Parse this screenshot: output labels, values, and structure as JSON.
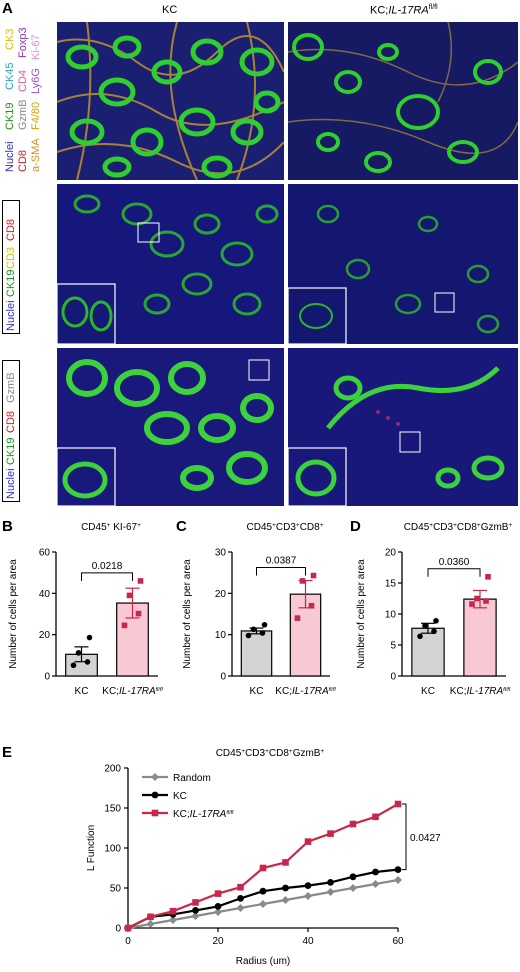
{
  "panel_labels": {
    "A": "A",
    "B": "B",
    "C": "C",
    "D": "D",
    "E": "E"
  },
  "panel_a": {
    "col_titles": [
      "KC",
      "KC;IL-17RA fl/fl"
    ],
    "row1_markers": [
      {
        "text": "Nuclei",
        "color": "#2d2dd0"
      },
      {
        "text": "CK19",
        "color": "#1a9a1a"
      },
      {
        "text": "CK45",
        "color": "#2aa6c9"
      },
      {
        "text": "CK3",
        "color": "#d6c100"
      },
      {
        "text": "CD8",
        "color": "#d01f1f"
      },
      {
        "text": "GzmB",
        "color": "#8a8a8a"
      },
      {
        "text": "CD4",
        "color": "#e05ab0"
      },
      {
        "text": "Foxp3",
        "color": "#8a35b5"
      },
      {
        "text": "a-SMA",
        "color": "#e08a1c"
      },
      {
        "text": "F4/80",
        "color": "#d6a300"
      },
      {
        "text": "Ly6G",
        "color": "#a04fd6"
      },
      {
        "text": "Ki-67",
        "color": "#e58ad6"
      }
    ],
    "row2_markers": [
      {
        "text": "Nuclei",
        "color": "#2d2dd0"
      },
      {
        "text": "CK19",
        "color": "#1a9a1a"
      },
      {
        "text": "CD3",
        "color": "#d6c100"
      },
      {
        "text": "CD8",
        "color": "#d01f1f"
      }
    ],
    "row3_markers": [
      {
        "text": "Nuclei",
        "color": "#2d2dd0"
      },
      {
        "text": "CK19",
        "color": "#1a9a1a"
      },
      {
        "text": "CD8",
        "color": "#d01f1f"
      },
      {
        "text": "GzmB",
        "color": "#8a8a8a"
      }
    ]
  },
  "chart_data": [
    {
      "panel": "B",
      "type": "bar",
      "title": "CD45+ KI-67+",
      "ylabel": "Number of cells per area",
      "categories": [
        "KC",
        "KC;IL-17RA fl/fl"
      ],
      "values": [
        10.5,
        35.3
      ],
      "errors": [
        3.6,
        7.2
      ],
      "points": [
        [
          5.2,
          6.8,
          11.2,
          18.6
        ],
        [
          24.5,
          30.2,
          39.0,
          46.0
        ]
      ],
      "colors": [
        "#d3d3d3",
        "#f8c8d4"
      ],
      "point_colors": [
        "#000000",
        "#c8274a"
      ],
      "ylim": [
        0,
        60
      ],
      "yticks": [
        0,
        20,
        40,
        60
      ],
      "pvalue": "0.0218"
    },
    {
      "panel": "C",
      "type": "bar",
      "title": "CD45+CD3+CD8+",
      "ylabel": "Number of cells per area",
      "categories": [
        "KC",
        "KC;IL-17RA fl/fl"
      ],
      "values": [
        10.9,
        19.8
      ],
      "errors": [
        0.7,
        3.3
      ],
      "points": [
        [
          9.8,
          10.4,
          11.3,
          12.4
        ],
        [
          14.0,
          17.0,
          23.0,
          24.3
        ]
      ],
      "colors": [
        "#d3d3d3",
        "#f8c8d4"
      ],
      "point_colors": [
        "#000000",
        "#c8274a"
      ],
      "ylim": [
        0,
        30
      ],
      "yticks": [
        0,
        10,
        20,
        30
      ],
      "pvalue": "0.0387"
    },
    {
      "panel": "D",
      "type": "bar",
      "title": "CD45+CD3+CD8+GzmB+",
      "ylabel": "Number of cells per area",
      "categories": [
        "KC",
        "KC;IL-17RA fl/fl"
      ],
      "values": [
        7.7,
        12.4
      ],
      "errors": [
        0.8,
        1.4
      ],
      "points": [
        [
          6.4,
          7.2,
          8.1,
          8.9
        ],
        [
          11.6,
          12.1,
          12.5,
          16.0
        ]
      ],
      "colors": [
        "#d3d3d3",
        "#f8c8d4"
      ],
      "point_colors": [
        "#000000",
        "#c8274a"
      ],
      "ylim": [
        0,
        20
      ],
      "yticks": [
        0,
        5,
        10,
        15,
        20
      ],
      "pvalue": "0.0360"
    },
    {
      "panel": "E",
      "type": "line",
      "title": "CD45+CD3+CD8+GzmB+",
      "xlabel": "Radius (um)",
      "ylabel": "L Function",
      "x": [
        0,
        5,
        10,
        15,
        20,
        25,
        30,
        35,
        40,
        45,
        50,
        55,
        60
      ],
      "series": [
        {
          "name": "Random",
          "color": "#8a8a8a",
          "marker": "diamond",
          "values": [
            0,
            5,
            10,
            15,
            20,
            25,
            30,
            35,
            40,
            45,
            50,
            55,
            60
          ]
        },
        {
          "name": "KC",
          "color": "#000000",
          "marker": "circle",
          "values": [
            0,
            14,
            17,
            22,
            27,
            37,
            46,
            50,
            53,
            57,
            64,
            70,
            73
          ]
        },
        {
          "name": "KC;IL-17RA fl/fl",
          "color": "#c8274a",
          "marker": "square",
          "values": [
            0,
            14,
            21,
            32,
            43,
            51,
            75,
            82,
            108,
            118,
            130,
            139,
            155
          ]
        }
      ],
      "xlim": [
        0,
        60
      ],
      "ylim": [
        0,
        200
      ],
      "xticks": [
        0,
        20,
        40,
        60
      ],
      "yticks": [
        0,
        50,
        100,
        150,
        200
      ],
      "pvalue": "0.0427"
    }
  ]
}
